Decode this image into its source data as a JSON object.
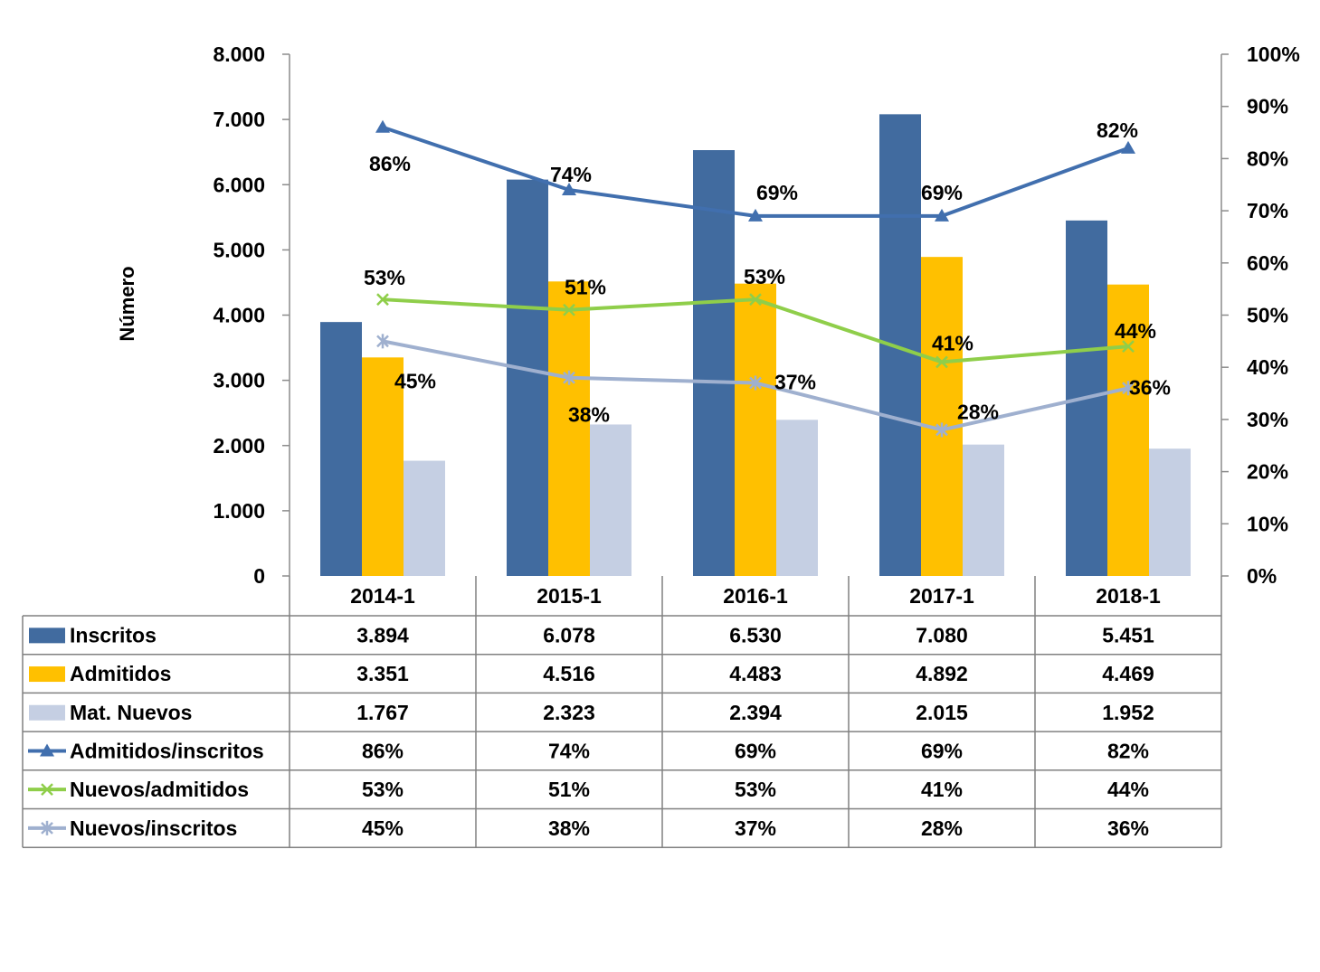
{
  "chart_data": {
    "type": "bar",
    "title": "",
    "xlabel": "",
    "ylabel": "Número",
    "ylim": [
      0,
      8000
    ],
    "y2lim": [
      0,
      100
    ],
    "y_ticks": [
      "0",
      "1.000",
      "2.000",
      "3.000",
      "4.000",
      "5.000",
      "6.000",
      "7.000",
      "8.000"
    ],
    "y2_ticks": [
      "0%",
      "10%",
      "20%",
      "30%",
      "40%",
      "50%",
      "60%",
      "70%",
      "80%",
      "90%",
      "100%"
    ],
    "categories": [
      "2014-1",
      "2015-1",
      "2016-1",
      "2017-1",
      "2018-1"
    ],
    "bar_series": [
      {
        "name": "Inscritos",
        "color": "#416b9f",
        "values": [
          3894,
          6078,
          6530,
          7080,
          5451
        ],
        "table_values": [
          "3.894",
          "6.078",
          "6.530",
          "7.080",
          "5.451"
        ]
      },
      {
        "name": "Admitidos",
        "color": "#ffc000",
        "values": [
          3351,
          4516,
          4483,
          4892,
          4469
        ],
        "table_values": [
          "3.351",
          "4.516",
          "4.483",
          "4.892",
          "4.469"
        ]
      },
      {
        "name": "Mat. Nuevos",
        "color": "#c5cfe3",
        "values": [
          1767,
          2323,
          2394,
          2015,
          1952
        ],
        "table_values": [
          "1.767",
          "2.323",
          "2.394",
          "2.015",
          "1.952"
        ]
      }
    ],
    "line_series": [
      {
        "name": "Admitidos/inscritos",
        "color": "#416fae",
        "marker": "triangle",
        "values": [
          86,
          74,
          69,
          69,
          82
        ],
        "labels": [
          "86%",
          "74%",
          "69%",
          "69%",
          "82%"
        ]
      },
      {
        "name": "Nuevos/admitidos",
        "color": "#8fce4a",
        "marker": "x",
        "values": [
          53,
          51,
          53,
          41,
          44
        ],
        "labels": [
          "53%",
          "51%",
          "53%",
          "41%",
          "44%"
        ]
      },
      {
        "name": "Nuevos/inscritos",
        "color": "#9fb0cf",
        "marker": "star",
        "values": [
          45,
          38,
          37,
          28,
          36
        ],
        "labels": [
          "45%",
          "38%",
          "37%",
          "28%",
          "36%"
        ]
      }
    ]
  }
}
